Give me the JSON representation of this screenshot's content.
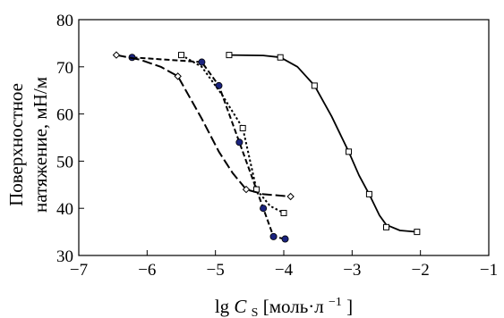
{
  "chart_data": {
    "type": "scatter",
    "title": "",
    "xlabel": {
      "prefix": "lg ",
      "var": "C",
      "sub": "S",
      "unit_open": " [моль·л",
      "exp": "−1",
      "unit_close": "]"
    },
    "ylabel_lines": [
      "Поверхностное",
      "натяжение, мН/м"
    ],
    "xlim": [
      -7,
      -1
    ],
    "ylim": [
      30,
      80
    ],
    "x_ticks": [
      -7,
      -6,
      -5,
      -4,
      -3,
      -2,
      -1
    ],
    "x_tick_labels": [
      "−7",
      "−6",
      "−5",
      "−4",
      "−3",
      "−2",
      "−1"
    ],
    "y_ticks": [
      30,
      40,
      50,
      60,
      70,
      80
    ],
    "y_tick_labels": [
      "30",
      "40",
      "50",
      "60",
      "70",
      "80"
    ],
    "grid": false,
    "series": [
      {
        "marker": "square",
        "line": "solid",
        "color": "#000000",
        "points": [
          [
            -4.8,
            72.5
          ],
          [
            -4.05,
            72.0
          ],
          [
            -3.55,
            66.0
          ],
          [
            -3.05,
            52.0
          ],
          [
            -2.75,
            43.0
          ],
          [
            -2.5,
            36.0
          ],
          [
            -2.05,
            35.0
          ]
        ],
        "curve": [
          [
            -4.8,
            72.5
          ],
          [
            -4.3,
            72.4
          ],
          [
            -4.05,
            72.0
          ],
          [
            -3.8,
            70.0
          ],
          [
            -3.55,
            66.0
          ],
          [
            -3.3,
            59.5
          ],
          [
            -3.05,
            52.0
          ],
          [
            -2.9,
            47.0
          ],
          [
            -2.75,
            43.0
          ],
          [
            -2.6,
            38.5
          ],
          [
            -2.5,
            36.5
          ],
          [
            -2.3,
            35.3
          ],
          [
            -2.05,
            35.0
          ]
        ]
      },
      {
        "marker": "circle",
        "line": "dashed",
        "color": "#000000",
        "fill": "#1a237e",
        "points": [
          [
            -6.22,
            72.0
          ],
          [
            -5.2,
            71.0
          ],
          [
            -4.95,
            66.0
          ],
          [
            -4.65,
            54.0
          ],
          [
            -4.3,
            40.0
          ],
          [
            -4.15,
            34.0
          ],
          [
            -3.98,
            33.5
          ]
        ],
        "curve": [
          [
            -6.22,
            72.0
          ],
          [
            -5.2,
            71.0
          ],
          [
            -4.95,
            66.0
          ],
          [
            -4.65,
            54.0
          ],
          [
            -4.3,
            40.0
          ],
          [
            -4.15,
            34.0
          ],
          [
            -3.98,
            33.5
          ]
        ]
      },
      {
        "marker": "square",
        "line": "dotted",
        "color": "#000000",
        "points": [
          [
            -5.5,
            72.5
          ],
          [
            -4.6,
            57.0
          ],
          [
            -4.4,
            44.0
          ],
          [
            -4.0,
            39.0
          ]
        ],
        "curve": [
          [
            -5.5,
            72.5
          ],
          [
            -5.2,
            70.0
          ],
          [
            -4.9,
            64.0
          ],
          [
            -4.6,
            57.0
          ],
          [
            -4.4,
            44.0
          ],
          [
            -4.2,
            40.5
          ],
          [
            -4.0,
            39.0
          ]
        ]
      },
      {
        "marker": "diamond",
        "line": "longdash",
        "color": "#000000",
        "points": [
          [
            -6.45,
            72.5
          ],
          [
            -5.55,
            68.0
          ],
          [
            -4.55,
            44.0
          ],
          [
            -3.9,
            42.5
          ]
        ],
        "curve": [
          [
            -6.45,
            72.5
          ],
          [
            -6.1,
            71.5
          ],
          [
            -5.8,
            70.0
          ],
          [
            -5.55,
            68.0
          ],
          [
            -5.2,
            59.0
          ],
          [
            -4.95,
            52.0
          ],
          [
            -4.75,
            47.5
          ],
          [
            -4.55,
            44.0
          ],
          [
            -4.3,
            43.0
          ],
          [
            -3.9,
            42.5
          ]
        ]
      }
    ]
  }
}
